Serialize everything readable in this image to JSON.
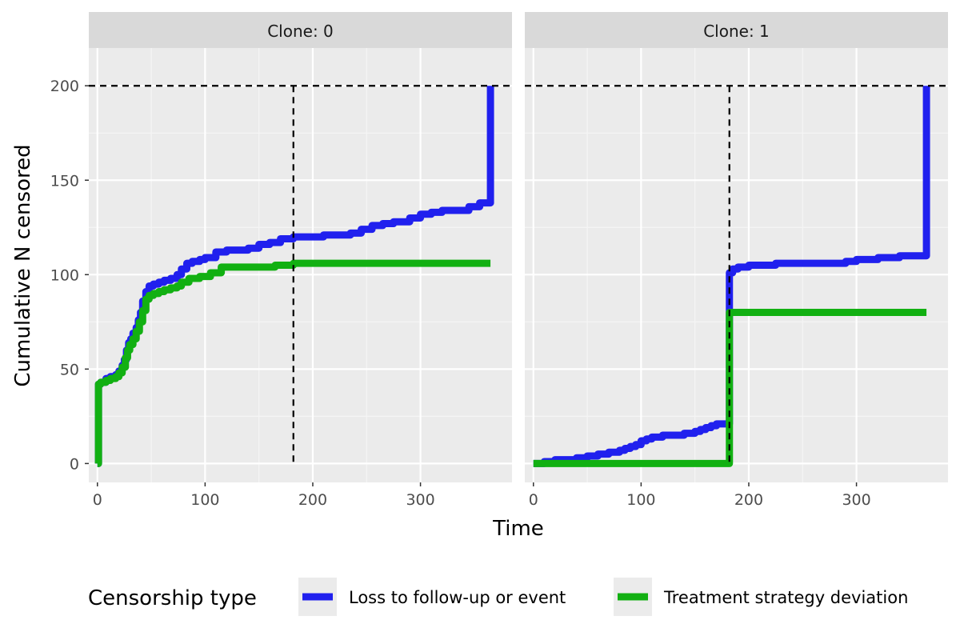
{
  "chart_data": {
    "type": "line",
    "subtype": "step",
    "xlabel": "Time",
    "ylabel": "Cumulative N censored",
    "xlim": [
      -8,
      385
    ],
    "ylim": [
      -10,
      220
    ],
    "x_ticks": [
      0,
      100,
      200,
      300
    ],
    "y_ticks": [
      0,
      50,
      100,
      150,
      200
    ],
    "grid": true,
    "facet_label": "Clone",
    "legend": {
      "title": "Censorship type",
      "placement": "bottom",
      "entries": [
        {
          "label": "Loss to follow-up or event",
          "color": "#2020ee"
        },
        {
          "label": "Treatment strategy deviation",
          "color": "#12b012"
        }
      ]
    },
    "reference_lines": {
      "horizontal_y": 200,
      "vertical_x": 182
    },
    "panels": [
      {
        "strip": "Clone: 0",
        "series": [
          {
            "name": "Loss to follow-up or event",
            "color": "#2020ee",
            "x": [
              0,
              1,
              3,
              8,
              12,
              17,
              20,
              23,
              25,
              27,
              29,
              31,
              33,
              36,
              38,
              40,
              42,
              45,
              48,
              52,
              57,
              62,
              68,
              74,
              78,
              83,
              88,
              95,
              100,
              110,
              120,
              130,
              140,
              150,
              160,
              170,
              182,
              200,
              210,
              220,
              235,
              245,
              255,
              265,
              275,
              290,
              300,
              310,
              320,
              330,
              345,
              355,
              365,
              365
            ],
            "y": [
              0,
              42,
              43,
              45,
              46,
              47,
              49,
              52,
              55,
              60,
              64,
              66,
              69,
              72,
              76,
              80,
              86,
              91,
              94,
              95,
              96,
              97,
              98,
              100,
              103,
              106,
              107,
              108,
              109,
              112,
              113,
              113,
              114,
              116,
              117,
              119,
              120,
              120,
              121,
              121,
              122,
              124,
              126,
              127,
              128,
              130,
              132,
              133,
              134,
              134,
              136,
              138,
              138,
              200
            ]
          },
          {
            "name": "Treatment strategy deviation",
            "color": "#12b012",
            "x": [
              0,
              1,
              3,
              8,
              12,
              17,
              20,
              23,
              26,
              28,
              30,
              33,
              36,
              39,
              42,
              45,
              48,
              52,
              57,
              62,
              68,
              74,
              78,
              85,
              95,
              105,
              115,
              140,
              165,
              182,
              200,
              250,
              300,
              365
            ],
            "y": [
              0,
              42,
              43,
              44,
              45,
              46,
              48,
              51,
              56,
              60,
              63,
              66,
              70,
              75,
              81,
              87,
              89,
              90,
              91,
              92,
              93,
              94,
              96,
              98,
              99,
              101,
              104,
              104,
              105,
              106,
              106,
              106,
              106,
              106
            ]
          }
        ]
      },
      {
        "strip": "Clone: 1",
        "series": [
          {
            "name": "Loss to follow-up or event",
            "color": "#2020ee",
            "x": [
              0,
              10,
              20,
              30,
              40,
              50,
              60,
              70,
              80,
              85,
              90,
              95,
              100,
              105,
              110,
              120,
              130,
              140,
              150,
              155,
              160,
              165,
              170,
              175,
              181,
              182,
              185,
              190,
              195,
              200,
              225,
              250,
              275,
              290,
              300,
              320,
              340,
              365,
              365
            ],
            "y": [
              0,
              1,
              2,
              2,
              3,
              4,
              5,
              6,
              7,
              8,
              9,
              10,
              12,
              13,
              14,
              15,
              15,
              16,
              17,
              18,
              19,
              20,
              21,
              21,
              21,
              101,
              103,
              104,
              104,
              105,
              106,
              106,
              106,
              107,
              108,
              109,
              110,
              110,
              200
            ]
          },
          {
            "name": "Treatment strategy deviation",
            "color": "#12b012",
            "x": [
              0,
              100,
              181,
              182,
              200,
              250,
              300,
              365
            ],
            "y": [
              0,
              0,
              0,
              80,
              80,
              80,
              80,
              80
            ]
          }
        ]
      }
    ]
  }
}
